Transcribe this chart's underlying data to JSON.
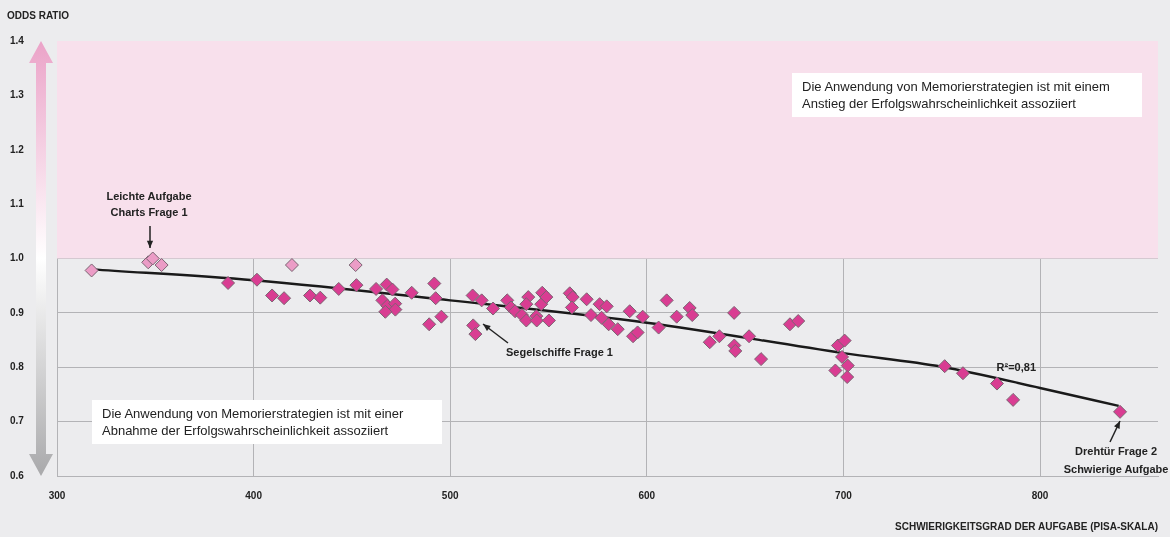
{
  "chart_data": {
    "type": "scatter",
    "ylabel": "ODDS RATIO",
    "xlabel": "SCHWIERIGKEITSGRAD DER AUFGABE (PISA-SKALA)",
    "xlim": [
      300,
      860
    ],
    "xticks": [
      300,
      400,
      500,
      600,
      700,
      800
    ],
    "ylim": [
      0.6,
      1.4
    ],
    "yticks": [
      0.6,
      0.7,
      0.8,
      0.9,
      {
        "value": 1,
        "label": "1.0"
      },
      1.1,
      1.2,
      1.3,
      1.4
    ],
    "grid": true,
    "legend": false,
    "marker": "diamond",
    "series": [
      {
        "type": "scatter",
        "color": "#eb9cc6",
        "x": [
          317.6,
          346.4,
          348.7,
          353.2,
          419.5,
          451.9
        ],
        "values": [
          0.978,
          0.993,
          1.0,
          0.988,
          0.988,
          0.988
        ]
      },
      {
        "type": "scatter",
        "color": "#d93d92",
        "x": [
          387,
          401.7,
          409.4,
          415.5,
          428.7,
          433.9,
          443.3,
          452.3,
          462.3,
          467.7,
          470.6,
          465.5,
          468,
          472,
          472.1,
          467,
          480.4,
          489.3,
          491.9,
          492.6,
          495.5,
          511.4,
          516,
          521.8,
          511.7,
          512.8,
          529,
          530.9,
          533,
          536.5,
          538.7,
          539.7,
          538.7,
          543.8,
          544,
          546.3,
          546.8,
          548.9,
          550.2,
          560.8,
          562.3,
          561.9,
          569.4,
          571.6,
          576,
          579.6,
          577,
          580.6,
          585.2,
          591.3,
          597.9,
          593,
          595.3,
          606,
          610.1,
          615.2,
          621.8,
          623.1,
          644.4,
          632,
          636.9,
          644.5,
          645,
          652,
          658.1,
          672.8,
          677,
          697.2,
          700.6,
          699.3,
          702.2,
          695.9,
          701.9,
          751.5,
          760.8,
          778.1,
          786.3,
          840.7
        ],
        "values": [
          0.955,
          0.961,
          0.932,
          0.927,
          0.932,
          0.928,
          0.944,
          0.951,
          0.944,
          0.952,
          0.943,
          0.923,
          0.913,
          0.917,
          0.906,
          0.902,
          0.937,
          0.879,
          0.954,
          0.927,
          0.893,
          0.932,
          0.923,
          0.908,
          0.877,
          0.861,
          0.923,
          0.91,
          0.903,
          0.896,
          0.886,
          0.929,
          0.916,
          0.894,
          0.886,
          0.916,
          0.937,
          0.929,
          0.886,
          0.936,
          0.929,
          0.91,
          0.925,
          0.896,
          0.916,
          0.912,
          0.891,
          0.879,
          0.87,
          0.903,
          0.893,
          0.857,
          0.864,
          0.873,
          0.923,
          0.893,
          0.909,
          0.896,
          0.9,
          0.846,
          0.857,
          0.84,
          0.83,
          0.857,
          0.815,
          0.879,
          0.885,
          0.84,
          0.849,
          0.819,
          0.803,
          0.794,
          0.782,
          0.802,
          0.789,
          0.77,
          0.74,
          0.718
        ]
      },
      {
        "type": "line",
        "color": "#1a1a1a",
        "marker": "none",
        "x": [
          318,
          400,
          500,
          600,
          700,
          750,
          800,
          840
        ],
        "values": [
          0.98,
          0.96,
          0.923,
          0.882,
          0.826,
          0.801,
          0.762,
          0.729
        ]
      }
    ],
    "bands": [
      {
        "axis": "y",
        "from": 1.0,
        "to": 1.4,
        "color": "#f8e0ec"
      }
    ],
    "annotations": [
      "Leichte Aufgabe\nCharts Frage 1",
      "Segelschiffe Frage 1",
      {
        "text": "Drehtür Frage 2\nSchwierige Aufgabe",
        "x": 840.7,
        "y": 0.718
      },
      {
        "text": "R²=0,81",
        "x": 800,
        "y": 0.762
      },
      "Die Anwendung von Memorierstrategien ist mit einem Anstieg der Erfolgswahrscheinlichkeit assoziiert",
      "Die Anwendung von Memorierstrategien ist mit einer Abnahme der Erfolgswahrscheinlichkeit assoziiert"
    ]
  }
}
